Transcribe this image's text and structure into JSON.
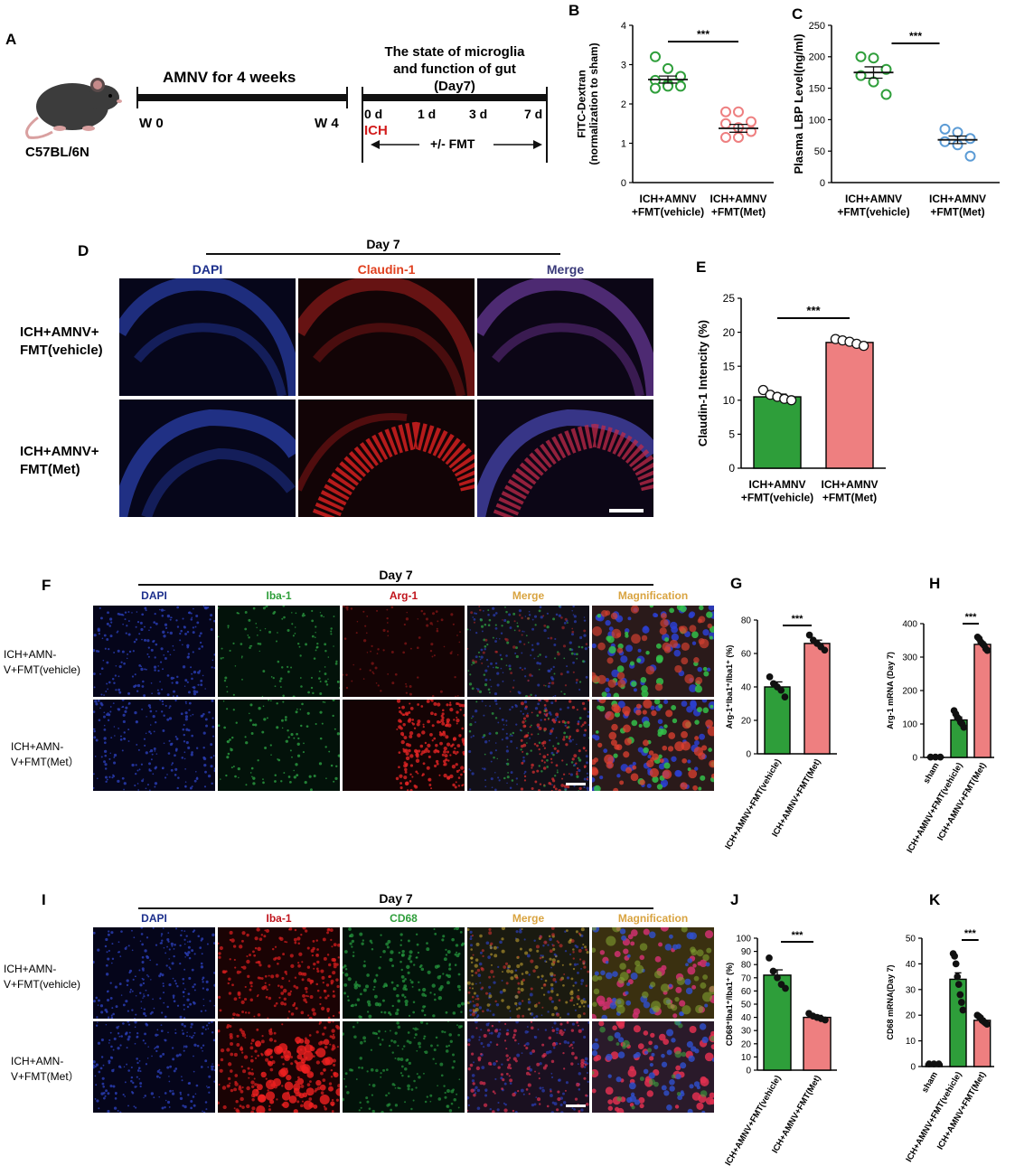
{
  "panelA": {
    "letter": "A",
    "strain": "C57BL/6N",
    "amnv_label": "AMNV for 4 weeks",
    "w0": "W 0",
    "w4": "W 4",
    "state_line1": "The state of microglia",
    "state_line2": "and function of gut",
    "state_line3": "(Day7)",
    "ticks": [
      "0 d",
      "1 d",
      "3 d",
      "7 d"
    ],
    "ich": "ICH",
    "fmt": "+/- FMT"
  },
  "panelD": {
    "letter": "D",
    "day": "Day 7",
    "col_labels": [
      "DAPI",
      "Claudin-1",
      "Merge"
    ],
    "row_labels": [
      [
        "ICH+AMNV+",
        "FMT(vehicle)"
      ],
      [
        "ICH+AMNV+",
        "FMT(Met)"
      ]
    ]
  },
  "panelF": {
    "letter": "F",
    "day": "Day 7",
    "col_labels": [
      "DAPI",
      "Iba-1",
      "Arg-1",
      "Merge",
      "Magnification"
    ],
    "row_labels": [
      [
        "ICH+AMN-",
        "V+FMT(vehicle)"
      ],
      [
        "ICH+AMN-",
        "V+FMT(Met）"
      ]
    ]
  },
  "panelI": {
    "letter": "I",
    "day": "Day 7",
    "col_labels": [
      "DAPI",
      "Iba-1",
      "CD68",
      "Merge",
      "Magnification"
    ],
    "row_labels": [
      [
        "ICH+AMN-",
        "V+FMT(vehicle)"
      ],
      [
        "ICH+AMN-",
        "V+FMT(Met）"
      ]
    ]
  },
  "colors": {
    "green": "#2e9e3a",
    "pink": "#ee7f80",
    "blue": "#5b9bd5",
    "dapi": "#1c2f8c",
    "red_label": "#e0401f",
    "arg_label": "#c0141c",
    "merge_label": "#3a3a7a",
    "orange_label": "#d9a441",
    "green_label": "#2e9e3a"
  },
  "chart_data": [
    {
      "id": "B",
      "letter": "B",
      "type": "scatter",
      "ylabel": "FITC-Dextran\n(normalization to sham)",
      "ylim": [
        0,
        4
      ],
      "yticks": [
        0,
        1,
        2,
        3,
        4
      ],
      "categories": [
        "ICH+AMNV\n+FMT(vehicle)",
        "ICH+AMNV\n+FMT(Met)"
      ],
      "series": [
        {
          "values": [
            3.2,
            2.9,
            2.7,
            2.6,
            2.5,
            2.45,
            2.4,
            2.45
          ],
          "mean": 2.62,
          "sem": 0.09,
          "color": "#2e9e3a"
        },
        {
          "values": [
            1.8,
            1.8,
            1.55,
            1.5,
            1.4,
            1.3,
            1.15,
            1.15
          ],
          "mean": 1.38,
          "sem": 0.1,
          "color": "#ee7f80"
        }
      ],
      "significance": "***"
    },
    {
      "id": "C",
      "letter": "C",
      "type": "scatter",
      "ylabel": "Plasma LBP Level(ng/ml)",
      "ylim": [
        0,
        250
      ],
      "yticks": [
        0,
        50,
        100,
        150,
        200,
        250
      ],
      "categories": [
        "ICH+AMNV\n+FMT(vehicle)",
        "ICH+AMNV\n+FMT(Met)"
      ],
      "series": [
        {
          "values": [
            200,
            198,
            180,
            170,
            160,
            140
          ],
          "mean": 175,
          "sem": 9,
          "color": "#2e9e3a"
        },
        {
          "values": [
            85,
            80,
            70,
            65,
            60,
            42
          ],
          "mean": 68,
          "sem": 6,
          "color": "#5b9bd5"
        }
      ],
      "significance": "***"
    },
    {
      "id": "E",
      "letter": "E",
      "type": "bar",
      "ylabel": "Claudin-1 Intencity (%)",
      "ylim": [
        0,
        25
      ],
      "yticks": [
        0,
        5,
        10,
        15,
        20,
        25
      ],
      "categories": [
        "ICH+AMNV\n+FMT(vehicle)",
        "ICH+AMNV\n+FMT(Met)"
      ],
      "series": [
        {
          "mean": 10.5,
          "sem": 0.4,
          "points": [
            11.5,
            10.8,
            10.5,
            10.2,
            10.0
          ],
          "color": "#2e9e3a"
        },
        {
          "mean": 18.5,
          "sem": 0.3,
          "points": [
            19.0,
            18.8,
            18.6,
            18.3,
            18.0
          ],
          "color": "#ee7f80"
        }
      ],
      "significance": "***"
    },
    {
      "id": "G",
      "letter": "G",
      "type": "bar",
      "ylabel": "Arg-1⁺Iba1⁺/Iba1⁺ (%)",
      "ylim": [
        0,
        80
      ],
      "yticks": [
        0,
        20,
        40,
        60,
        80
      ],
      "categories": [
        "ICH+AMNV+FMT(vehicle)",
        "ICH+AMNV+FMT(Met)"
      ],
      "series": [
        {
          "mean": 40,
          "sem": 3,
          "points": [
            46,
            42,
            40,
            38,
            34
          ],
          "color": "#2e9e3a"
        },
        {
          "mean": 66,
          "sem": 2,
          "points": [
            71,
            68,
            66,
            64,
            62
          ],
          "color": "#ee7f80"
        }
      ],
      "significance": "***"
    },
    {
      "id": "H",
      "letter": "H",
      "type": "bar",
      "ylabel": "Arg-1 mRNA (Day 7)",
      "ylim": [
        0,
        400
      ],
      "yticks": [
        0,
        100,
        200,
        300,
        400
      ],
      "categories": [
        "sham",
        "ICH+AMNV+FMT(vehicle)",
        "ICH+AMNV+FMT(Met)"
      ],
      "series": [
        {
          "mean": 1,
          "sem": 0.5,
          "points": [
            1,
            1,
            1
          ],
          "color": "#888888"
        },
        {
          "mean": 112,
          "sem": 9,
          "points": [
            140,
            130,
            120,
            115,
            105,
            100,
            90
          ],
          "color": "#2e9e3a"
        },
        {
          "mean": 338,
          "sem": 7,
          "points": [
            360,
            355,
            345,
            340,
            335,
            325,
            320
          ],
          "color": "#ee7f80"
        }
      ],
      "significance": "***"
    },
    {
      "id": "J",
      "letter": "J",
      "type": "bar",
      "ylabel": "CD68⁺Iba1⁺/Iba1⁺ (%)",
      "ylim": [
        0,
        100
      ],
      "yticks": [
        0,
        10,
        20,
        30,
        40,
        50,
        60,
        70,
        80,
        90,
        100
      ],
      "categories": [
        "ICH+AMNV+FMT(vehicle)",
        "ICH+AMNV+FMT(Met)"
      ],
      "series": [
        {
          "mean": 72,
          "sem": 4,
          "points": [
            85,
            75,
            70,
            65,
            62
          ],
          "color": "#2e9e3a"
        },
        {
          "mean": 40,
          "sem": 1.5,
          "points": [
            43,
            41,
            40,
            39,
            38
          ],
          "color": "#ee7f80"
        }
      ],
      "significance": "***"
    },
    {
      "id": "K",
      "letter": "K",
      "type": "bar",
      "ylabel": "CD68 mRNA(Day 7)",
      "ylim": [
        0,
        50
      ],
      "yticks": [
        0,
        10,
        20,
        30,
        40,
        50
      ],
      "categories": [
        "sham",
        "ICH+AMNV+FMT(vehicle)",
        "ICH+AMNV+FMT(Met)"
      ],
      "series": [
        {
          "mean": 1,
          "sem": 0.2,
          "points": [
            1,
            1,
            1
          ],
          "color": "#888888"
        },
        {
          "mean": 34,
          "sem": 2.5,
          "points": [
            44,
            43,
            40,
            35,
            32,
            28,
            25,
            22
          ],
          "color": "#2e9e3a"
        },
        {
          "mean": 18,
          "sem": 0.8,
          "points": [
            20,
            19.5,
            19,
            18,
            17.5,
            17,
            16.5
          ],
          "color": "#ee7f80"
        }
      ],
      "significance": "***"
    }
  ]
}
